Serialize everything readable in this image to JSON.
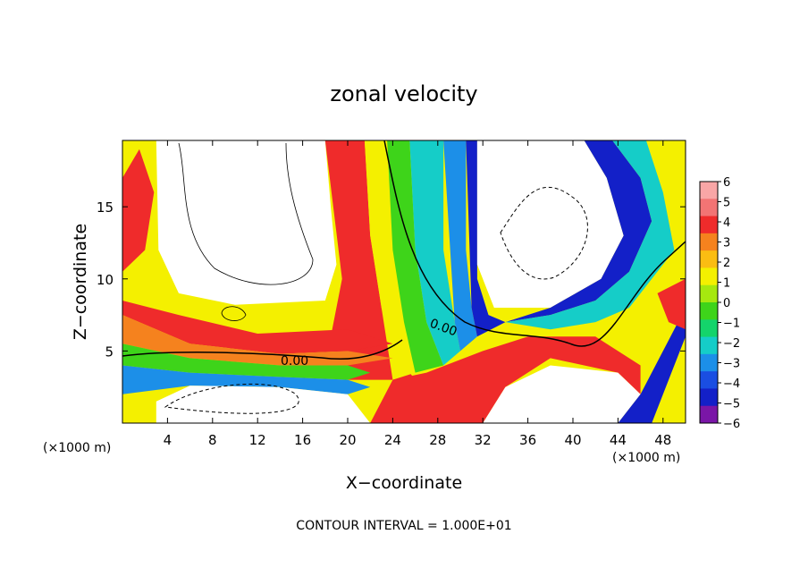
{
  "chart_data": {
    "type": "heatmap",
    "title": "zonal velocity",
    "xlabel": "X−coordinate",
    "ylabel": "Z−coordinate",
    "xlim": [
      0,
      50
    ],
    "ylim": [
      0,
      19.6
    ],
    "x_unit_left": "(×1000 m)",
    "x_unit_right": "(×1000 m)",
    "x_ticks": [
      4,
      8,
      12,
      16,
      20,
      24,
      28,
      32,
      36,
      40,
      44,
      48
    ],
    "x_tick_labels": [
      "4",
      "8",
      "12",
      "16",
      "20",
      "24",
      "28",
      "32",
      "36",
      "40",
      "44",
      "48"
    ],
    "y_ticks": [
      5,
      10,
      15
    ],
    "y_tick_labels": [
      "5",
      "10",
      "15"
    ],
    "footer": "CONTOUR INTERVAL = 1.000E+01",
    "contour_label": "0.00",
    "colorbar": {
      "levels": [
        6,
        5,
        4,
        3,
        2,
        1,
        0,
        -1,
        -2,
        -3,
        -4,
        -5,
        -6
      ],
      "tick_labels": [
        "6",
        "5",
        "4",
        "3",
        "2",
        "1",
        "0",
        "−1",
        "−2",
        "−3",
        "−4",
        "−5",
        "−6"
      ],
      "colors": [
        "#f9a6a6",
        "#f27474",
        "#ef2b2b",
        "#f5821e",
        "#fbbd12",
        "#f4f000",
        "#a6e80f",
        "#3ed41a",
        "#14d46b",
        "#15cdc8",
        "#1c8fe8",
        "#1a4ee2",
        "#1320c8",
        "#7a16a7"
      ]
    },
    "bands": [
      {
        "color": "#ef2b2b",
        "points": [
          [
            0,
            17
          ],
          [
            1.5,
            19
          ],
          [
            2.8,
            16
          ],
          [
            2,
            12
          ],
          [
            0,
            10.5
          ]
        ]
      },
      {
        "color": "#ffffff",
        "points": [
          [
            3,
            19.6
          ],
          [
            18,
            19.6
          ],
          [
            18.5,
            15
          ],
          [
            19,
            11
          ],
          [
            18,
            8.5
          ],
          [
            10,
            8.2
          ],
          [
            5,
            9
          ],
          [
            3.2,
            12
          ]
        ]
      },
      {
        "color": "#ef2b2b",
        "points": [
          [
            18,
            19.6
          ],
          [
            21.5,
            19.6
          ],
          [
            22,
            13
          ],
          [
            23,
            8
          ],
          [
            24,
            5
          ],
          [
            26,
            3
          ],
          [
            20,
            3
          ],
          [
            18.5,
            6
          ],
          [
            19.5,
            10
          ]
        ]
      },
      {
        "color": "#f4f000",
        "points": [
          [
            21.5,
            19.6
          ],
          [
            23.5,
            19.6
          ],
          [
            24,
            12
          ],
          [
            25,
            7
          ],
          [
            26,
            3.5
          ],
          [
            24,
            3
          ],
          [
            23,
            8
          ],
          [
            22,
            13
          ]
        ]
      },
      {
        "color": "#3ed41a",
        "points": [
          [
            23.5,
            19.6
          ],
          [
            25.5,
            19.6
          ],
          [
            26,
            12
          ],
          [
            27,
            7
          ],
          [
            28.5,
            4
          ],
          [
            26,
            3.5
          ],
          [
            25,
            7
          ],
          [
            24,
            12
          ]
        ]
      },
      {
        "color": "#15cdc8",
        "points": [
          [
            25.5,
            19.6
          ],
          [
            28.5,
            19.6
          ],
          [
            28.5,
            12
          ],
          [
            29.5,
            7
          ],
          [
            30,
            5
          ],
          [
            28.5,
            4
          ],
          [
            27,
            7
          ],
          [
            26,
            12
          ]
        ]
      },
      {
        "color": "#1c8fe8",
        "points": [
          [
            28.5,
            19.6
          ],
          [
            30.5,
            19.6
          ],
          [
            30.5,
            12
          ],
          [
            31,
            8
          ],
          [
            31.5,
            6
          ],
          [
            30,
            5
          ],
          [
            29.5,
            7
          ]
        ]
      },
      {
        "color": "#1320c8",
        "points": [
          [
            30.5,
            19.6
          ],
          [
            31.5,
            19.6
          ],
          [
            31.5,
            10
          ],
          [
            32.5,
            7.5
          ],
          [
            34,
            7
          ],
          [
            31.5,
            6
          ],
          [
            31,
            8
          ]
        ]
      },
      {
        "color": "#ffffff",
        "points": [
          [
            31.5,
            19.6
          ],
          [
            41,
            19.6
          ],
          [
            43,
            17
          ],
          [
            44.5,
            13
          ],
          [
            42.5,
            10
          ],
          [
            38,
            8
          ],
          [
            33,
            8
          ],
          [
            31.5,
            11
          ]
        ]
      },
      {
        "color": "#1320c8",
        "points": [
          [
            41,
            19.6
          ],
          [
            43.5,
            19.6
          ],
          [
            46,
            17
          ],
          [
            47,
            14
          ],
          [
            45,
            10.5
          ],
          [
            42,
            8.5
          ],
          [
            38,
            7.5
          ],
          [
            34,
            7
          ],
          [
            38,
            8
          ],
          [
            42.5,
            10
          ],
          [
            44.5,
            13
          ],
          [
            43,
            17
          ]
        ]
      },
      {
        "color": "#15cdc8",
        "points": [
          [
            43.5,
            19.6
          ],
          [
            46.5,
            19.6
          ],
          [
            48,
            16
          ],
          [
            49,
            12
          ],
          [
            47,
            10
          ],
          [
            45,
            8
          ],
          [
            42,
            7
          ],
          [
            38,
            6.5
          ],
          [
            34,
            7
          ],
          [
            38,
            7.5
          ],
          [
            42,
            8.5
          ],
          [
            45,
            10.5
          ],
          [
            47,
            14
          ],
          [
            46,
            17
          ]
        ]
      },
      {
        "color": "#ef2b2b",
        "points": [
          [
            0,
            7.5
          ],
          [
            6,
            5.5
          ],
          [
            14,
            4.8
          ],
          [
            20,
            5
          ],
          [
            24,
            5.5
          ],
          [
            20,
            6.5
          ],
          [
            12,
            6.2
          ],
          [
            5,
            7.5
          ],
          [
            0,
            8.5
          ]
        ]
      },
      {
        "color": "#f5821e",
        "points": [
          [
            0,
            5.5
          ],
          [
            6,
            4.5
          ],
          [
            14,
            4
          ],
          [
            20,
            4
          ],
          [
            24,
            4.5
          ],
          [
            20,
            5
          ],
          [
            14,
            4.8
          ],
          [
            6,
            5.5
          ],
          [
            0,
            7.5
          ]
        ]
      },
      {
        "color": "#3ed41a",
        "points": [
          [
            0,
            4
          ],
          [
            6,
            3.5
          ],
          [
            14,
            3.2
          ],
          [
            20,
            3
          ],
          [
            22,
            3.5
          ],
          [
            20,
            4
          ],
          [
            14,
            4
          ],
          [
            6,
            4.5
          ],
          [
            0,
            5.5
          ]
        ]
      },
      {
        "color": "#1c8fe8",
        "points": [
          [
            0,
            2
          ],
          [
            6,
            2.6
          ],
          [
            14,
            2.5
          ],
          [
            20,
            2
          ],
          [
            22,
            2.5
          ],
          [
            20,
            3
          ],
          [
            14,
            3.2
          ],
          [
            6,
            3.5
          ],
          [
            0,
            4
          ]
        ]
      },
      {
        "color": "#ffffff",
        "points": [
          [
            3,
            0
          ],
          [
            22,
            0
          ],
          [
            20,
            2
          ],
          [
            14,
            2.5
          ],
          [
            6,
            2.6
          ],
          [
            3,
            1.5
          ]
        ]
      },
      {
        "color": "#ef2b2b",
        "points": [
          [
            22,
            0
          ],
          [
            32,
            0
          ],
          [
            34,
            2.5
          ],
          [
            38,
            4.5
          ],
          [
            44,
            3.5
          ],
          [
            46,
            2
          ],
          [
            46,
            4
          ],
          [
            42,
            6
          ],
          [
            36,
            6
          ],
          [
            32,
            5
          ],
          [
            27,
            3.5
          ],
          [
            24,
            3
          ]
        ]
      },
      {
        "color": "#ffffff",
        "points": [
          [
            32,
            0
          ],
          [
            44,
            0
          ],
          [
            46,
            2
          ],
          [
            44,
            3.5
          ],
          [
            38,
            4
          ],
          [
            34,
            2.5
          ]
        ]
      },
      {
        "color": "#1320c8",
        "points": [
          [
            44,
            0
          ],
          [
            47,
            0
          ],
          [
            49,
            4
          ],
          [
            50,
            6
          ],
          [
            50,
            8
          ],
          [
            48,
            5
          ],
          [
            46,
            2
          ]
        ]
      },
      {
        "color": "#ef2b2b",
        "points": [
          [
            47.5,
            9
          ],
          [
            50,
            10
          ],
          [
            50,
            6.5
          ],
          [
            48.5,
            7
          ]
        ]
      }
    ]
  }
}
